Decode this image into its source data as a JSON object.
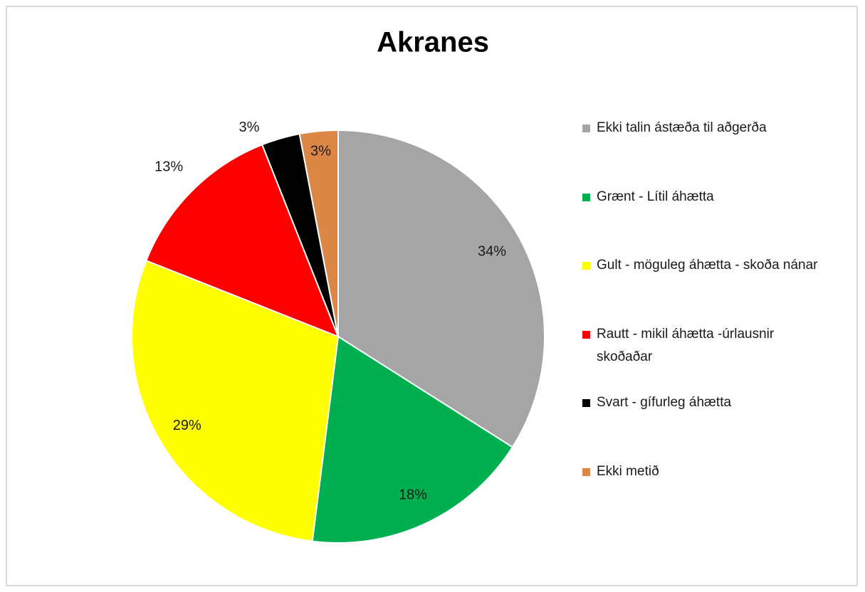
{
  "chart_data": {
    "type": "pie",
    "title": "Akranes",
    "categories": [
      "Ekki talin ástæða til aðgerða",
      "Grænt - Lítil áhætta",
      "Gult - möguleg áhætta - skoða nánar",
      "Rautt - mikil áhætta -úrlausnir skoðaðar",
      "Svart - gífurleg áhætta",
      "Ekki metið"
    ],
    "values": [
      34,
      18,
      29,
      13,
      3,
      3
    ],
    "value_labels": [
      "34%",
      "18%",
      "29%",
      "13%",
      "3%",
      "3%"
    ],
    "colors": [
      "#a5a5a5",
      "#00b050",
      "#ffff00",
      "#ff0000",
      "#000000",
      "#dd8747"
    ],
    "legend": "right"
  }
}
